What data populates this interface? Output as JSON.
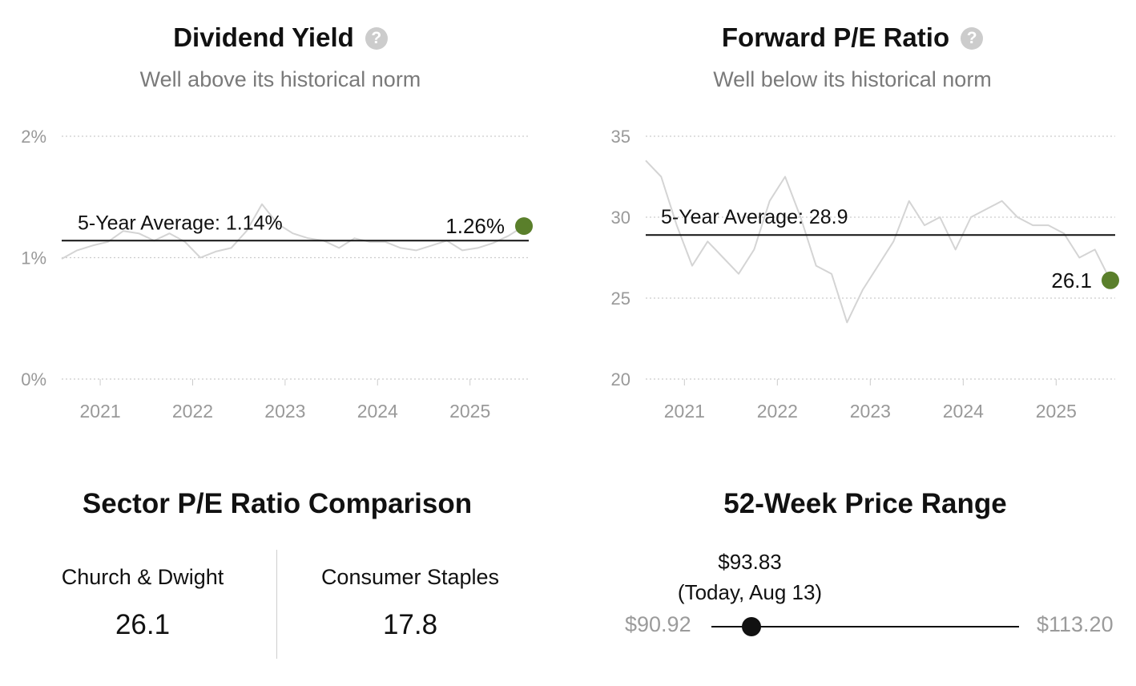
{
  "dividend_panel": {
    "title": "Dividend Yield",
    "subtitle": "Well above its historical norm",
    "help_icon_glyph": "?",
    "avg_label": "5-Year Average: 1.14%",
    "current_label": "1.26%"
  },
  "pe_panel": {
    "title": "Forward P/E Ratio",
    "subtitle": "Well below its historical norm",
    "help_icon_glyph": "?",
    "avg_label": "5-Year Average: 28.9",
    "current_label": "26.1"
  },
  "colors": {
    "line": "#d4d4d4",
    "average": "#111111",
    "current_dot": "#5a7f2b",
    "grid": "#cccccc",
    "tick": "#999999"
  },
  "chart_data": [
    {
      "type": "line",
      "title": "Dividend Yield",
      "subtitle": "Well above its historical norm",
      "y_unit": "%",
      "ylim": [
        0,
        2
      ],
      "y_ticks": [
        0,
        1,
        2
      ],
      "y_tick_labels": [
        "0%",
        "1%",
        "2%"
      ],
      "x_ticks": [
        "2021",
        "2022",
        "2023",
        "2024",
        "2025"
      ],
      "x_range": [
        "2020-08",
        "2025-08"
      ],
      "average": 1.14,
      "current": 1.26,
      "grid": true,
      "series": [
        {
          "x": [
            "2020-08",
            "2020-10",
            "2020-12",
            "2021-02",
            "2021-04",
            "2021-06",
            "2021-08",
            "2021-10",
            "2021-12",
            "2022-02",
            "2022-04",
            "2022-06",
            "2022-08",
            "2022-10",
            "2022-12",
            "2023-02",
            "2023-04",
            "2023-06",
            "2023-08",
            "2023-10",
            "2023-12",
            "2024-02",
            "2024-04",
            "2024-06",
            "2024-08",
            "2024-10",
            "2024-12",
            "2025-02",
            "2025-04",
            "2025-06",
            "2025-08"
          ],
          "values": [
            0.99,
            1.06,
            1.1,
            1.13,
            1.22,
            1.2,
            1.14,
            1.2,
            1.13,
            1.0,
            1.05,
            1.08,
            1.22,
            1.44,
            1.28,
            1.2,
            1.16,
            1.14,
            1.08,
            1.16,
            1.13,
            1.13,
            1.08,
            1.06,
            1.1,
            1.14,
            1.06,
            1.08,
            1.12,
            1.18,
            1.26
          ]
        }
      ]
    },
    {
      "type": "line",
      "title": "Forward P/E Ratio",
      "subtitle": "Well below its historical norm",
      "ylim": [
        20,
        35
      ],
      "y_ticks": [
        20,
        25,
        30,
        35
      ],
      "x_ticks": [
        "2021",
        "2022",
        "2023",
        "2024",
        "2025"
      ],
      "x_range": [
        "2020-08",
        "2025-08"
      ],
      "average": 28.9,
      "current": 26.1,
      "grid": true,
      "series": [
        {
          "x": [
            "2020-08",
            "2020-10",
            "2020-12",
            "2021-02",
            "2021-04",
            "2021-06",
            "2021-08",
            "2021-10",
            "2021-12",
            "2022-02",
            "2022-04",
            "2022-06",
            "2022-08",
            "2022-10",
            "2022-12",
            "2023-02",
            "2023-04",
            "2023-06",
            "2023-08",
            "2023-10",
            "2023-12",
            "2024-02",
            "2024-04",
            "2024-06",
            "2024-08",
            "2024-10",
            "2024-12",
            "2025-02",
            "2025-04",
            "2025-06",
            "2025-08"
          ],
          "values": [
            33.5,
            32.5,
            29.5,
            27.0,
            28.5,
            27.5,
            26.5,
            28.0,
            31.0,
            32.5,
            30.0,
            27.0,
            26.5,
            23.5,
            25.5,
            27.0,
            28.5,
            31.0,
            29.5,
            30.0,
            28.0,
            30.0,
            30.5,
            31.0,
            30.0,
            29.5,
            29.5,
            29.0,
            27.5,
            28.0,
            26.1
          ]
        }
      ]
    }
  ],
  "sector": {
    "title": "Sector P/E Ratio Comparison",
    "company_label": "Church & Dwight",
    "company_value": "26.1",
    "sector_label": "Consumer Staples",
    "sector_value": "17.8"
  },
  "range52": {
    "title": "52-Week Price Range",
    "low": "$90.92",
    "high": "$113.20",
    "current_price": "$93.83",
    "current_date": "(Today, Aug 13)",
    "position_fraction": 0.131
  }
}
